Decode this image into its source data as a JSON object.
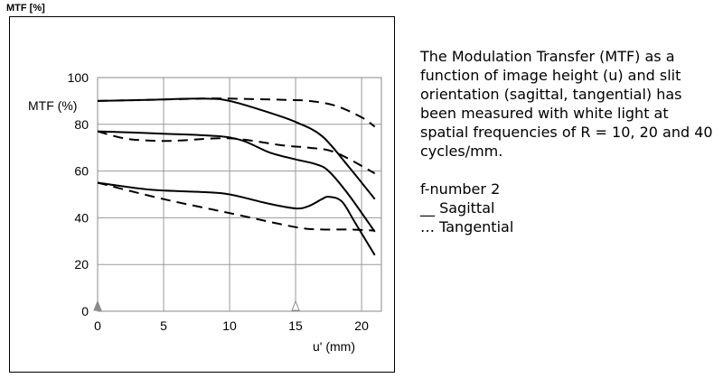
{
  "header": {
    "title": "MTF [%]"
  },
  "description": {
    "text": "The Modulation Transfer (MTF) as a function of image height (u) and slit orientation (sagittal, tangential) has been measured with white light at spatial frequencies of R = 10, 20 and 40 cycles/mm.",
    "fnumber": "f-number 2",
    "sagittal": "__ Sagittal",
    "tangential": "… Tangential"
  },
  "chart_data": {
    "type": "line",
    "title": "",
    "xlabel": "u' (mm)",
    "ylabel": "MTF (%)",
    "xlim": [
      0,
      21.5
    ],
    "ylim": [
      0,
      100
    ],
    "xticks": [
      0,
      5,
      10,
      15,
      20
    ],
    "yticks": [
      0,
      20,
      40,
      60,
      80,
      100
    ],
    "grid": true,
    "markers": [
      {
        "x": 0,
        "style": "filled-triangle"
      },
      {
        "x": 15,
        "style": "open-triangle"
      }
    ],
    "series": [
      {
        "dash": "solid",
        "x": [
          0,
          4,
          8,
          10,
          13,
          15,
          17,
          19,
          21
        ],
        "values": [
          90,
          90.5,
          91,
          90,
          85,
          81,
          75,
          62,
          48
        ]
      },
      {
        "dash": "dashed",
        "x": [
          0,
          4,
          8,
          10,
          14,
          16,
          18,
          20,
          21
        ],
        "values": [
          90,
          90.5,
          91,
          91,
          90.5,
          90,
          88,
          83,
          79
        ]
      },
      {
        "dash": "solid",
        "x": [
          0,
          5,
          9,
          11,
          13,
          15,
          16.5,
          17.5,
          19,
          21
        ],
        "values": [
          77,
          76,
          75,
          73,
          68,
          65,
          63,
          60,
          50,
          34
        ]
      },
      {
        "dash": "dashed",
        "x": [
          0,
          2,
          4,
          6,
          10,
          14,
          16,
          18,
          21
        ],
        "values": [
          77,
          74,
          73,
          73,
          74,
          71,
          70,
          68,
          59
        ]
      },
      {
        "dash": "solid",
        "x": [
          0,
          4,
          8,
          10,
          13,
          15,
          16,
          17,
          17.5,
          18.5,
          19.5,
          21
        ],
        "values": [
          55,
          52,
          51,
          50,
          46,
          44,
          45,
          48,
          49,
          47,
          38,
          24
        ]
      },
      {
        "dash": "dashed",
        "x": [
          0,
          5,
          10,
          15,
          17,
          19,
          21
        ],
        "values": [
          55,
          48,
          42,
          36,
          35,
          35,
          34.5
        ]
      }
    ]
  }
}
